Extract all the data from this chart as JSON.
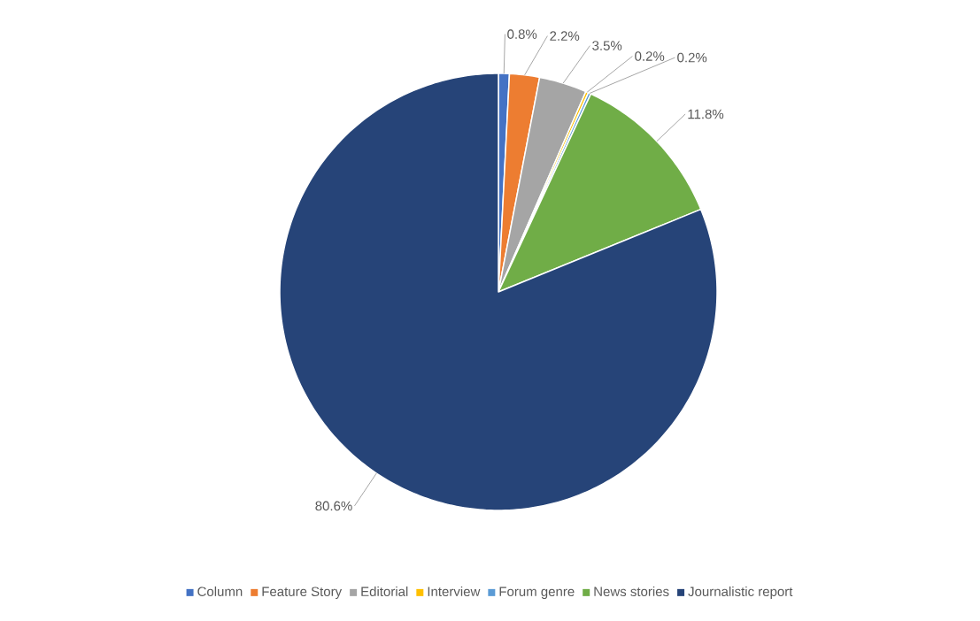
{
  "chart_data": {
    "type": "pie",
    "categories": [
      "Column",
      "Feature Story",
      "Editorial",
      "Interview",
      "Forum genre",
      "News stories",
      "Journalistic report"
    ],
    "values": [
      0.8,
      2.2,
      3.5,
      0.2,
      0.2,
      11.8,
      80.6
    ],
    "value_labels": [
      "0.8%",
      "2.2%",
      "3.5%",
      "0.2%",
      "0.2%",
      "11.8%",
      "80.6%"
    ],
    "colors": [
      "#4472c4",
      "#ed7d31",
      "#a5a5a5",
      "#ffc000",
      "#5b9bd5",
      "#70ad47",
      "#264478"
    ],
    "legend": "bottom"
  }
}
